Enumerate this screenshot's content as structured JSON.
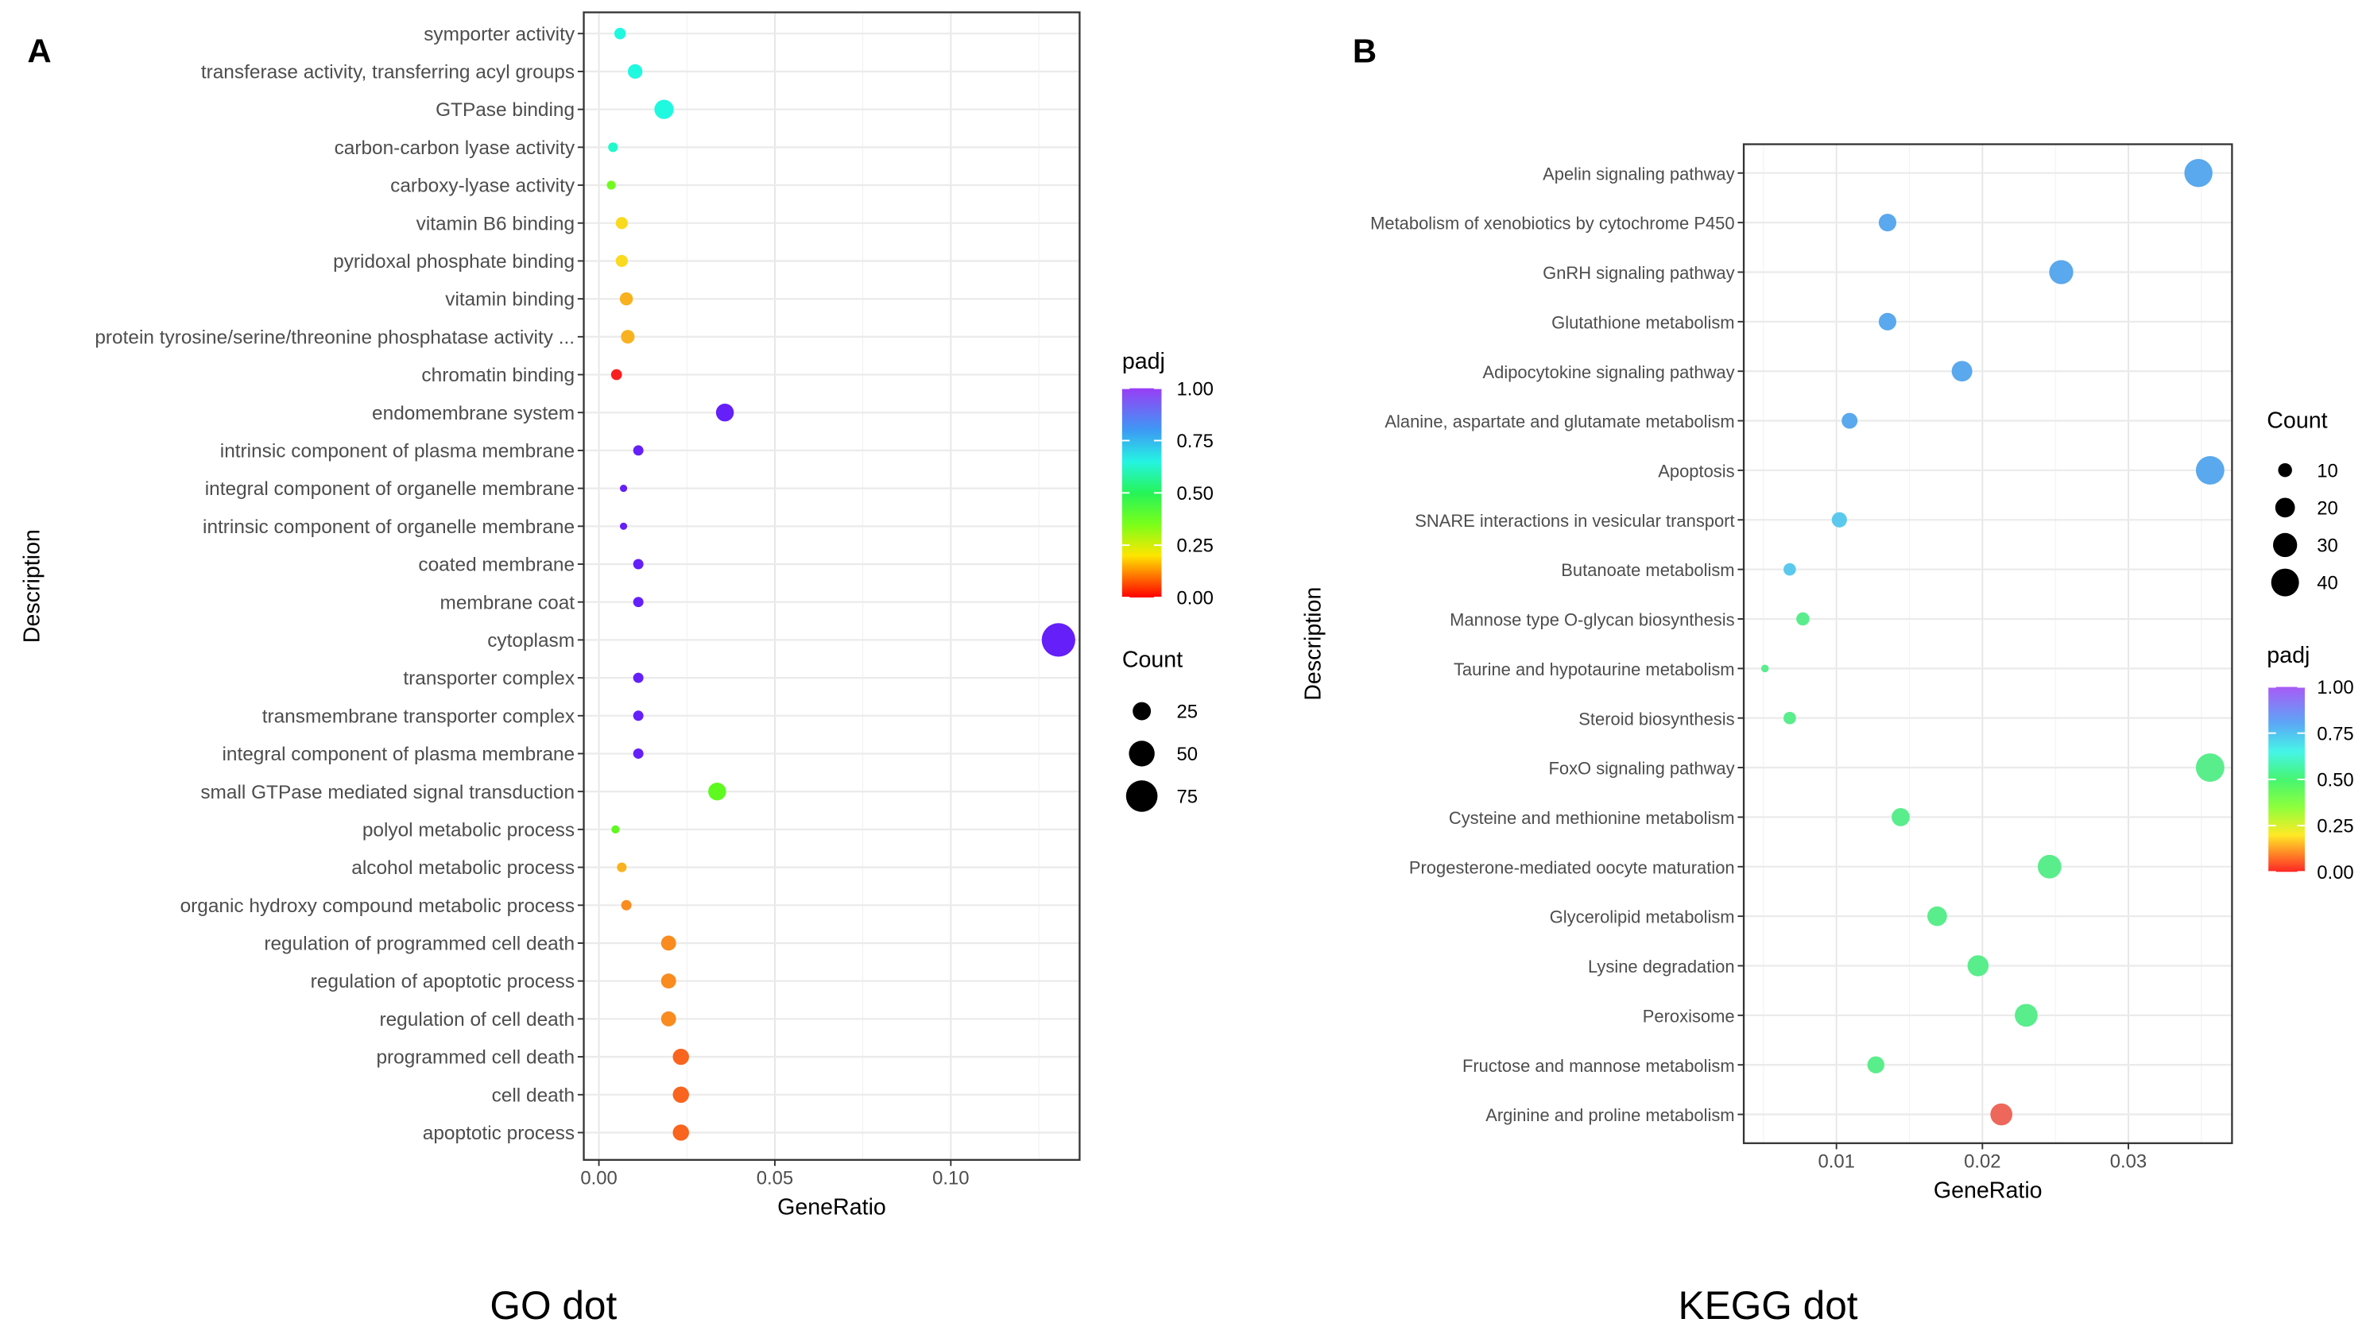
{
  "chart_data": [
    {
      "type": "scatter",
      "panel_label": "A",
      "caption": "GO dot",
      "xlabel": "GeneRatio",
      "ylabel": "Description",
      "xlim": [
        -0.0043,
        0.1366
      ],
      "xticks": [
        0.0,
        0.05,
        0.1
      ],
      "xtick_labels": [
        "0.00",
        "0.05",
        "0.10"
      ],
      "grid": true,
      "color_legend": {
        "title": "padj",
        "ticks": [
          "1.00",
          "0.75",
          "0.50",
          "0.25",
          "0.00"
        ],
        "placement": "right"
      },
      "size_legend": {
        "title": "Count",
        "values": [
          25,
          50,
          75
        ],
        "labels": [
          "25",
          "50",
          "75"
        ],
        "placement": "right"
      },
      "rows": [
        {
          "label": "symporter activity",
          "x": 0.006,
          "count": 10,
          "padj": 0.64
        },
        {
          "label": "transferase activity, transferring acyl groups",
          "x": 0.0103,
          "count": 16,
          "padj": 0.64
        },
        {
          "label": "GTPase binding",
          "x": 0.0185,
          "count": 28,
          "padj": 0.64
        },
        {
          "label": "carbon-carbon lyase activity",
          "x": 0.004,
          "count": 7,
          "padj": 0.62
        },
        {
          "label": "carboxy-lyase activity",
          "x": 0.0035,
          "count": 6,
          "padj": 0.36
        },
        {
          "label": "vitamin B6 binding",
          "x": 0.0065,
          "count": 11,
          "padj": 0.19
        },
        {
          "label": "pyridoxal phosphate binding",
          "x": 0.0065,
          "count": 11,
          "padj": 0.19
        },
        {
          "label": "vitamin binding",
          "x": 0.0078,
          "count": 13,
          "padj": 0.15
        },
        {
          "label": "protein tyrosine/serine/threonine phosphatase activity ...",
          "x": 0.0082,
          "count": 14,
          "padj": 0.15
        },
        {
          "label": "chromatin binding",
          "x": 0.005,
          "count": 9,
          "padj": 0.0
        },
        {
          "label": "endomembrane system",
          "x": 0.0358,
          "count": 24,
          "padj": 0.96
        },
        {
          "label": "intrinsic component of plasma membrane",
          "x": 0.0112,
          "count": 8,
          "padj": 0.96
        },
        {
          "label": "integral component of organelle membrane",
          "x": 0.007,
          "count": 4,
          "padj": 0.96
        },
        {
          "label": "intrinsic component of organelle membrane",
          "x": 0.007,
          "count": 4,
          "padj": 0.96
        },
        {
          "label": "coated membrane",
          "x": 0.0112,
          "count": 8,
          "padj": 0.96
        },
        {
          "label": "membrane coat",
          "x": 0.0112,
          "count": 8,
          "padj": 0.96
        },
        {
          "label": "cytoplasm",
          "x": 0.1306,
          "count": 85,
          "padj": 0.96
        },
        {
          "label": "transporter complex",
          "x": 0.0112,
          "count": 8,
          "padj": 0.96
        },
        {
          "label": "transmembrane transporter complex",
          "x": 0.0112,
          "count": 8,
          "padj": 0.96
        },
        {
          "label": "integral component of plasma membrane",
          "x": 0.0112,
          "count": 8,
          "padj": 0.96
        },
        {
          "label": "small GTPase mediated signal transduction",
          "x": 0.0336,
          "count": 24,
          "padj": 0.38
        },
        {
          "label": "polyol metabolic process",
          "x": 0.0047,
          "count": 5,
          "padj": 0.38
        },
        {
          "label": "alcohol metabolic process",
          "x": 0.0065,
          "count": 7,
          "padj": 0.15
        },
        {
          "label": "organic hydroxy compound metabolic process",
          "x": 0.0078,
          "count": 8,
          "padj": 0.11
        },
        {
          "label": "regulation of programmed cell death",
          "x": 0.0198,
          "count": 17,
          "padj": 0.11
        },
        {
          "label": "regulation of apoptotic process",
          "x": 0.0198,
          "count": 17,
          "padj": 0.11
        },
        {
          "label": "regulation of cell death",
          "x": 0.0198,
          "count": 17,
          "padj": 0.11
        },
        {
          "label": "programmed cell death",
          "x": 0.0233,
          "count": 20,
          "padj": 0.07
        },
        {
          "label": "cell death",
          "x": 0.0233,
          "count": 20,
          "padj": 0.07
        },
        {
          "label": "apoptotic process",
          "x": 0.0233,
          "count": 20,
          "padj": 0.07
        }
      ]
    },
    {
      "type": "scatter",
      "panel_label": "B",
      "caption": "KEGG dot",
      "xlabel": "GeneRatio",
      "ylabel": "Description",
      "xlim": [
        0.00365,
        0.0371
      ],
      "xticks": [
        0.01,
        0.02,
        0.03
      ],
      "xtick_labels": [
        "0.01",
        "0.02",
        "0.03"
      ],
      "grid": true,
      "color_legend": {
        "title": "padj",
        "ticks": [
          "1.00",
          "0.75",
          "0.50",
          "0.25",
          "0.00"
        ],
        "placement": "right"
      },
      "size_legend": {
        "title": "Count",
        "values": [
          10,
          20,
          30,
          40
        ],
        "labels": [
          "10",
          "20",
          "30",
          "40"
        ],
        "placement": "right"
      },
      "rows": [
        {
          "label": "Apelin signaling pathway",
          "x": 0.0348,
          "count": 41,
          "padj": 0.77
        },
        {
          "label": "Metabolism of xenobiotics by cytochrome P450",
          "x": 0.0135,
          "count": 16,
          "padj": 0.77
        },
        {
          "label": "GnRH signaling pathway",
          "x": 0.0254,
          "count": 30,
          "padj": 0.77
        },
        {
          "label": "Glutathione metabolism",
          "x": 0.0135,
          "count": 16,
          "padj": 0.77
        },
        {
          "label": "Adipocytokine signaling pathway",
          "x": 0.0186,
          "count": 22,
          "padj": 0.77
        },
        {
          "label": "Alanine, aspartate and glutamate metabolism",
          "x": 0.0109,
          "count": 13,
          "padj": 0.77
        },
        {
          "label": "Apoptosis",
          "x": 0.0356,
          "count": 42,
          "padj": 0.77
        },
        {
          "label": "SNARE interactions in vesicular transport",
          "x": 0.0102,
          "count": 12,
          "padj": 0.72
        },
        {
          "label": "Butanoate metabolism",
          "x": 0.0068,
          "count": 8,
          "padj": 0.72
        },
        {
          "label": "Mannose type O-glycan biosynthesis",
          "x": 0.0077,
          "count": 9,
          "padj": 0.52
        },
        {
          "label": "Taurine and hypotaurine metabolism",
          "x": 0.0051,
          "count": 3,
          "padj": 0.52
        },
        {
          "label": "Steroid biosynthesis",
          "x": 0.0068,
          "count": 8,
          "padj": 0.52
        },
        {
          "label": "FoxO signaling pathway",
          "x": 0.0356,
          "count": 42,
          "padj": 0.52
        },
        {
          "label": "Cysteine and methionine metabolism",
          "x": 0.0144,
          "count": 17,
          "padj": 0.52
        },
        {
          "label": "Progesterone-mediated oocyte maturation",
          "x": 0.0246,
          "count": 29,
          "padj": 0.52
        },
        {
          "label": "Glycerolipid metabolism",
          "x": 0.0169,
          "count": 20,
          "padj": 0.52
        },
        {
          "label": "Lysine degradation",
          "x": 0.0197,
          "count": 23,
          "padj": 0.52
        },
        {
          "label": "Peroxisome",
          "x": 0.023,
          "count": 27,
          "padj": 0.52
        },
        {
          "label": "Fructose and mannose metabolism",
          "x": 0.0127,
          "count": 15,
          "padj": 0.52
        },
        {
          "label": "Arginine and proline metabolism",
          "x": 0.0213,
          "count": 25,
          "padj": 0.02
        }
      ]
    }
  ]
}
